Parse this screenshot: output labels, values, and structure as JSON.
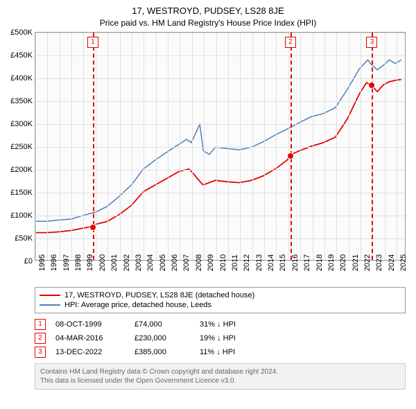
{
  "title": "17, WESTROYD, PUDSEY, LS28 8JE",
  "subtitle": "Price paid vs. HM Land Registry's House Price Index (HPI)",
  "chart": {
    "type": "line",
    "background_color": "#fbfbfb",
    "grid_color": "#e0e0e0",
    "border_color": "#999999",
    "y_axis": {
      "min": 0,
      "max": 500000,
      "step": 50000,
      "labels": [
        "£0",
        "£50K",
        "£100K",
        "£150K",
        "£200K",
        "£250K",
        "£300K",
        "£350K",
        "£400K",
        "£450K",
        "£500K"
      ],
      "fontsize": 11
    },
    "x_axis": {
      "min": 1995,
      "max": 2025.8,
      "step": 1,
      "ticks": [
        1995,
        1996,
        1997,
        1998,
        1999,
        2000,
        2001,
        2002,
        2003,
        2004,
        2005,
        2006,
        2007,
        2008,
        2009,
        2010,
        2011,
        2012,
        2013,
        2014,
        2015,
        2016,
        2017,
        2018,
        2019,
        2020,
        2021,
        2022,
        2023,
        2024,
        2025
      ],
      "fontsize": 11
    },
    "series": [
      {
        "id": "property",
        "label": "17, WESTROYD, PUDSEY, LS28 8JE (detached house)",
        "color": "#e60000",
        "line_width": 1.8,
        "data": [
          [
            1995,
            60000
          ],
          [
            1996,
            60000
          ],
          [
            1997,
            62000
          ],
          [
            1998,
            65000
          ],
          [
            1999,
            70000
          ],
          [
            1999.77,
            74000
          ],
          [
            2000,
            78000
          ],
          [
            2001,
            85000
          ],
          [
            2002,
            100000
          ],
          [
            2003,
            120000
          ],
          [
            2004,
            150000
          ],
          [
            2005,
            165000
          ],
          [
            2006,
            180000
          ],
          [
            2007,
            195000
          ],
          [
            2007.8,
            200000
          ],
          [
            2008,
            195000
          ],
          [
            2008.8,
            170000
          ],
          [
            2009,
            165000
          ],
          [
            2010,
            175000
          ],
          [
            2011,
            172000
          ],
          [
            2012,
            170000
          ],
          [
            2013,
            175000
          ],
          [
            2014,
            185000
          ],
          [
            2015,
            200000
          ],
          [
            2016,
            220000
          ],
          [
            2016.18,
            230000
          ],
          [
            2017,
            240000
          ],
          [
            2018,
            250000
          ],
          [
            2019,
            258000
          ],
          [
            2020,
            270000
          ],
          [
            2021,
            310000
          ],
          [
            2022,
            365000
          ],
          [
            2022.6,
            390000
          ],
          [
            2022.95,
            385000
          ],
          [
            2023,
            385000
          ],
          [
            2023.5,
            370000
          ],
          [
            2024,
            385000
          ],
          [
            2024.5,
            392000
          ],
          [
            2025,
            395000
          ],
          [
            2025.5,
            397000
          ]
        ]
      },
      {
        "id": "hpi",
        "label": "HPI: Average price, detached house, Leeds",
        "color": "#4a7ebb",
        "line_width": 1.5,
        "data": [
          [
            1995,
            85000
          ],
          [
            1996,
            85000
          ],
          [
            1997,
            88000
          ],
          [
            1998,
            90000
          ],
          [
            1999,
            98000
          ],
          [
            2000,
            105000
          ],
          [
            2001,
            118000
          ],
          [
            2002,
            140000
          ],
          [
            2003,
            165000
          ],
          [
            2004,
            200000
          ],
          [
            2005,
            220000
          ],
          [
            2006,
            238000
          ],
          [
            2007,
            255000
          ],
          [
            2007.6,
            265000
          ],
          [
            2008,
            258000
          ],
          [
            2008.7,
            298000
          ],
          [
            2009,
            240000
          ],
          [
            2009.5,
            232000
          ],
          [
            2010,
            248000
          ],
          [
            2011,
            245000
          ],
          [
            2012,
            242000
          ],
          [
            2013,
            248000
          ],
          [
            2014,
            260000
          ],
          [
            2015,
            275000
          ],
          [
            2016,
            288000
          ],
          [
            2017,
            302000
          ],
          [
            2018,
            315000
          ],
          [
            2019,
            322000
          ],
          [
            2020,
            335000
          ],
          [
            2021,
            375000
          ],
          [
            2022,
            420000
          ],
          [
            2022.7,
            440000
          ],
          [
            2023,
            430000
          ],
          [
            2023.5,
            418000
          ],
          [
            2024,
            428000
          ],
          [
            2024.5,
            440000
          ],
          [
            2025,
            432000
          ],
          [
            2025.5,
            440000
          ]
        ]
      }
    ],
    "transactions": [
      {
        "n": "1",
        "year": 1999.77,
        "price": 74000,
        "color": "#e60000",
        "date": "08-OCT-1999",
        "price_label": "£74,000",
        "diff": "31% ↓ HPI"
      },
      {
        "n": "2",
        "year": 2016.18,
        "price": 230000,
        "color": "#e60000",
        "date": "04-MAR-2016",
        "price_label": "£230,000",
        "diff": "19% ↓ HPI"
      },
      {
        "n": "3",
        "year": 2022.95,
        "price": 385000,
        "color": "#e60000",
        "date": "13-DEC-2022",
        "price_label": "£385,000",
        "diff": "11% ↓ HPI"
      }
    ]
  },
  "footer": {
    "line1": "Contains HM Land Registry data © Crown copyright and database right 2024.",
    "line2": "This data is licensed under the Open Government Licence v3.0."
  }
}
